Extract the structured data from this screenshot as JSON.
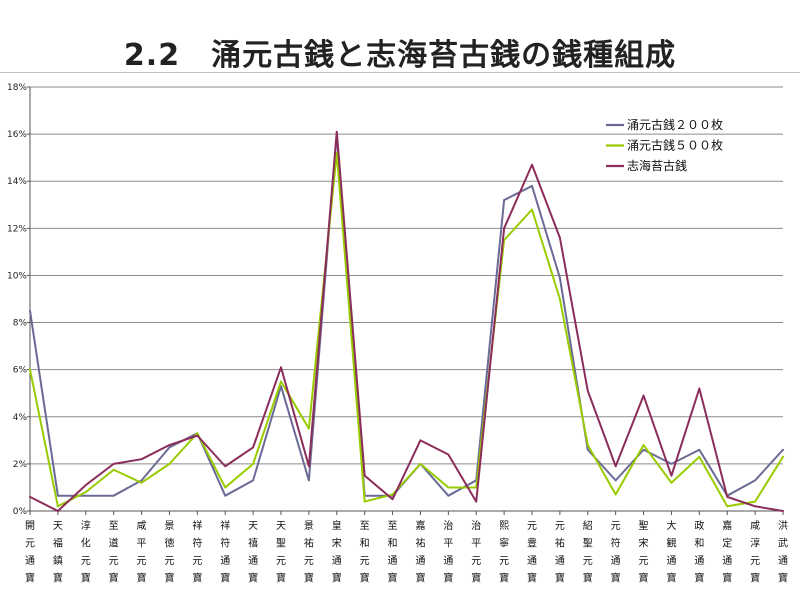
{
  "slide": {
    "title": "2.2　涌元古銭と志海苔古銭の銭種組成"
  },
  "chart_data": {
    "type": "line",
    "title": "2.2　涌元古銭と志海苔古銭の銭種組成",
    "xlabel": "",
    "ylabel": "",
    "ylim": [
      0,
      18
    ],
    "yticks": [
      "0%",
      "2%",
      "4%",
      "6%",
      "8%",
      "10%",
      "12%",
      "14%",
      "16%",
      "18%"
    ],
    "grid": true,
    "legend_position": "top-right",
    "categories": [
      "開元通寶",
      "天福鎮寶",
      "淳化元寶",
      "至道元寶",
      "咸平元寶",
      "景徳元寶",
      "祥符元寶",
      "祥符通寶",
      "天禧通寶",
      "天聖元寶",
      "景祐元寶",
      "皇宋通寶",
      "至和元寶",
      "至和通寶",
      "嘉祐通寶",
      "治平通寶",
      "治平元寶",
      "熙寧元寶",
      "元豊通寶",
      "元祐通寶",
      "紹聖元寶",
      "元符通寶",
      "聖宋元寶",
      "大観通寶",
      "政和通寶",
      "嘉定通寶",
      "咸淳元寶",
      "洪武通寶"
    ],
    "series": [
      {
        "name": "涌元古銭２００枚",
        "color": "#6a6a96",
        "values": [
          8.5,
          0.65,
          0.65,
          0.65,
          1.3,
          2.7,
          3.3,
          0.65,
          1.3,
          5.3,
          1.3,
          16.0,
          0.65,
          0.65,
          2.0,
          0.65,
          1.3,
          13.2,
          13.8,
          9.9,
          2.6,
          1.3,
          2.6,
          2.0,
          2.6,
          0.65,
          1.3,
          2.6
        ]
      },
      {
        "name": "涌元古銭５００枚",
        "color": "#99cc00",
        "values": [
          6.0,
          0.2,
          0.8,
          1.75,
          1.2,
          2.0,
          3.3,
          1.0,
          2.0,
          5.5,
          3.5,
          15.2,
          0.4,
          0.7,
          2.0,
          1.0,
          1.0,
          11.5,
          12.8,
          9.0,
          2.8,
          0.7,
          2.8,
          1.2,
          2.3,
          0.2,
          0.4,
          2.3
        ]
      },
      {
        "name": "志海苔古銭",
        "color": "#8b2d5a",
        "values": [
          0.6,
          0.0,
          1.1,
          2.0,
          2.2,
          2.8,
          3.2,
          1.9,
          2.7,
          6.1,
          1.9,
          16.1,
          1.5,
          0.5,
          3.0,
          2.4,
          0.4,
          12.0,
          14.7,
          11.6,
          5.1,
          1.9,
          4.9,
          1.5,
          5.2,
          0.6,
          0.2,
          0.0
        ]
      }
    ]
  }
}
